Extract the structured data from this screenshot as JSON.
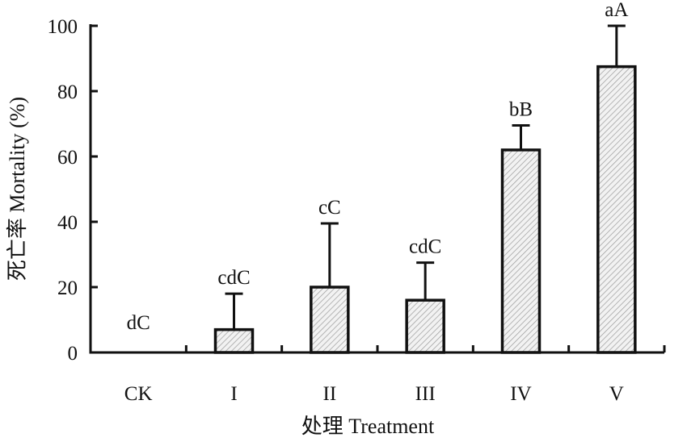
{
  "chart_data": {
    "type": "bar",
    "title": "",
    "xlabel": "处理 Treatment",
    "ylabel": "死亡率 Mortality (%)",
    "categories": [
      "CK",
      "I",
      "II",
      "III",
      "IV",
      "V"
    ],
    "values": [
      0,
      7,
      20,
      16,
      62,
      87.5
    ],
    "error_upper": [
      0,
      11,
      19.5,
      11.5,
      7.5,
      12.5
    ],
    "labels": [
      "dC",
      "cdC",
      "cC",
      "cdC",
      "bB",
      "aA"
    ],
    "ylim": [
      0,
      100
    ],
    "yticks": [
      0,
      20,
      40,
      60,
      80,
      100
    ],
    "grid": false,
    "bar_fill": "hatched",
    "colors": {
      "axis": "#111111",
      "hatch": "#9a9a9a",
      "bar_bg": "#f2f2f2"
    }
  }
}
